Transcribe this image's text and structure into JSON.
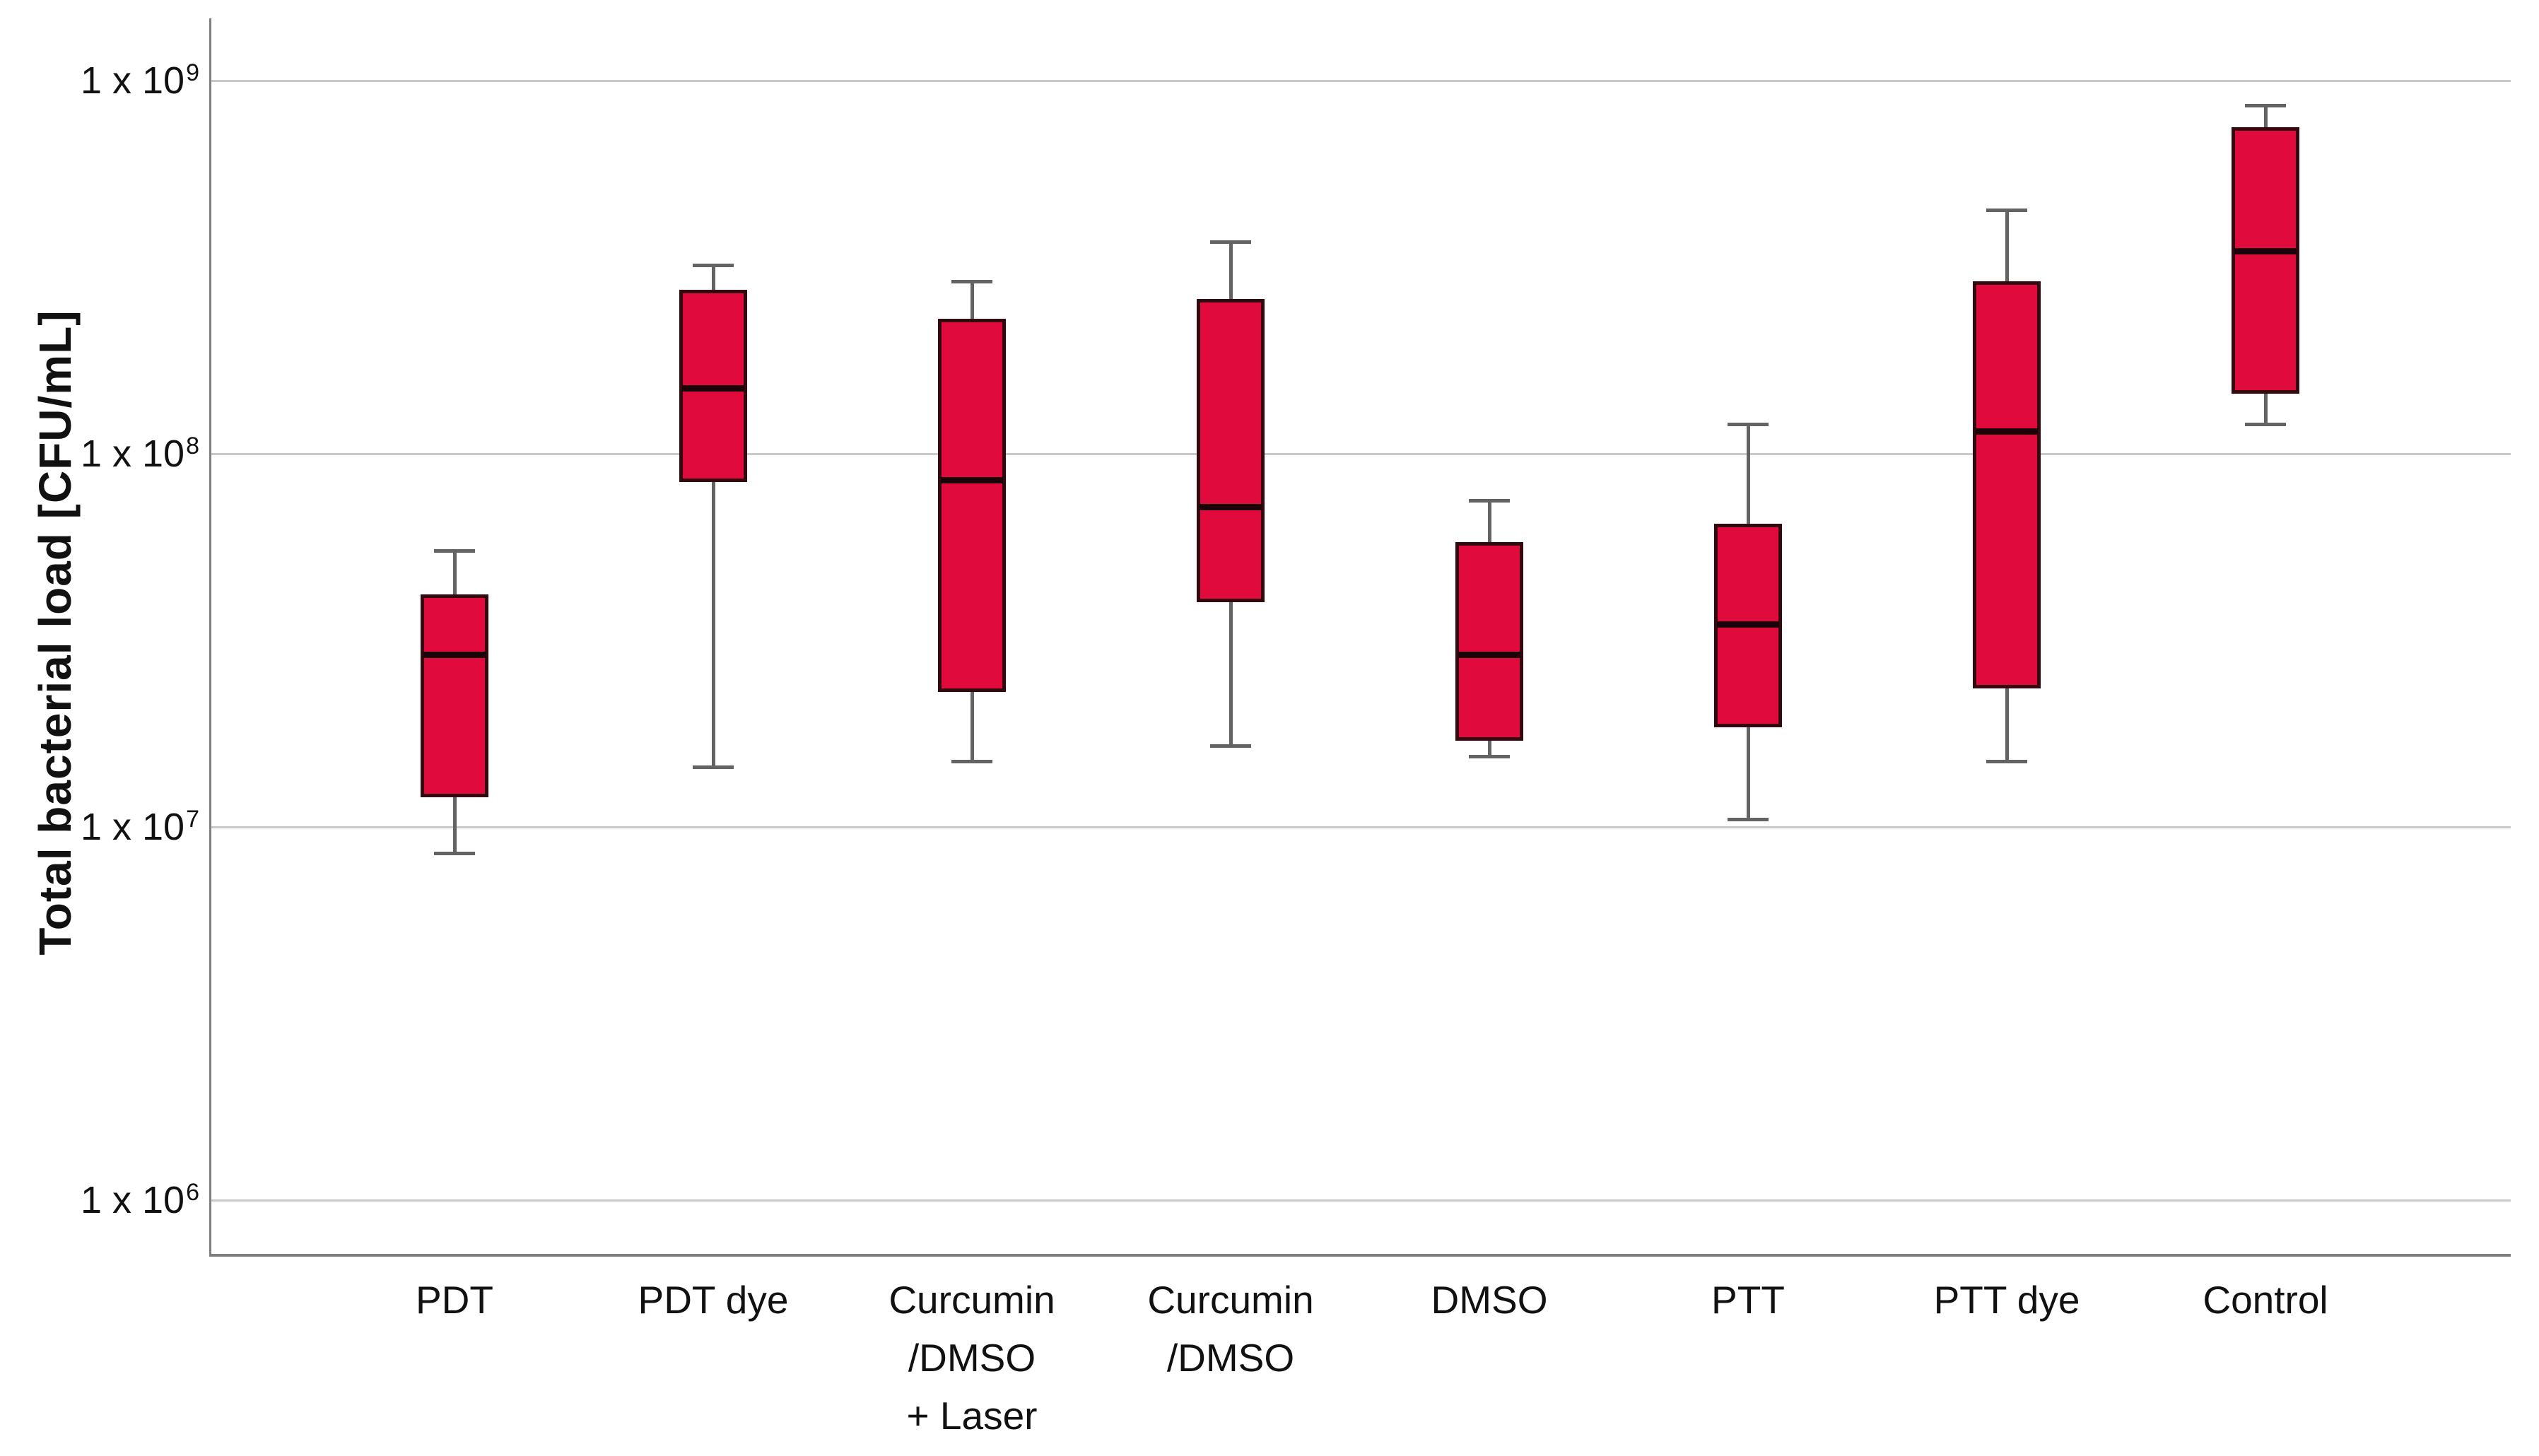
{
  "chart_data": {
    "type": "boxplot",
    "title": "",
    "xlabel": "",
    "ylabel": "Total bacterial load [CFU/mL]",
    "y_scale": "log10",
    "ylim": [
      720000,
      1470000000
    ],
    "grid": "horizontal",
    "legend": "none",
    "y_ticks": [
      {
        "text": "1 x 10",
        "exp": "9",
        "value": 1000000000
      },
      {
        "text": "1 x 10",
        "exp": "8",
        "value": 100000000
      },
      {
        "text": "1 x 10",
        "exp": "7",
        "value": 10000000
      },
      {
        "text": "1 x 10",
        "exp": "6",
        "value": 1000000
      }
    ],
    "categories": [
      "PDT",
      "PDT dye",
      "Curcumin\n/DMSO\n+ Laser",
      "Curcumin\n/DMSO",
      "DMSO",
      "PTT",
      "PTT dye",
      "Control"
    ],
    "boxes": [
      {
        "category": "PDT",
        "whisker_low": 8500000,
        "q1": 12000000,
        "median": 29000000,
        "q3": 42000000,
        "whisker_high": 55000000
      },
      {
        "category": "PDT dye",
        "whisker_low": 14500000,
        "q1": 84000000,
        "median": 150000000,
        "q3": 275000000,
        "whisker_high": 320000000
      },
      {
        "category": "Curcumin/DMSO + Laser",
        "whisker_low": 15000000,
        "q1": 23000000,
        "median": 85000000,
        "q3": 230000000,
        "whisker_high": 290000000
      },
      {
        "category": "Curcumin/DMSO",
        "whisker_low": 16500000,
        "q1": 40000000,
        "median": 72000000,
        "q3": 260000000,
        "whisker_high": 370000000
      },
      {
        "category": "DMSO",
        "whisker_low": 15500000,
        "q1": 17000000,
        "median": 29000000,
        "q3": 58000000,
        "whisker_high": 75000000
      },
      {
        "category": "PTT",
        "whisker_low": 10500000,
        "q1": 18500000,
        "median": 35000000,
        "q3": 65000000,
        "whisker_high": 120000000
      },
      {
        "category": "PTT dye",
        "whisker_low": 15000000,
        "q1": 23500000,
        "median": 115000000,
        "q3": 290000000,
        "whisker_high": 450000000
      },
      {
        "category": "Control",
        "whisker_low": 120000000,
        "q1": 145000000,
        "median": 350000000,
        "q3": 750000000,
        "whisker_high": 860000000
      }
    ]
  },
  "colors": {
    "box_fill": "#E00A3C",
    "box_border": "#33080F",
    "median_line": "#1B0409",
    "whisker": "#636363",
    "gridline": "#CACACA",
    "axis": "#7F7F7F",
    "text": "#111111",
    "background": "#FFFFFF"
  }
}
